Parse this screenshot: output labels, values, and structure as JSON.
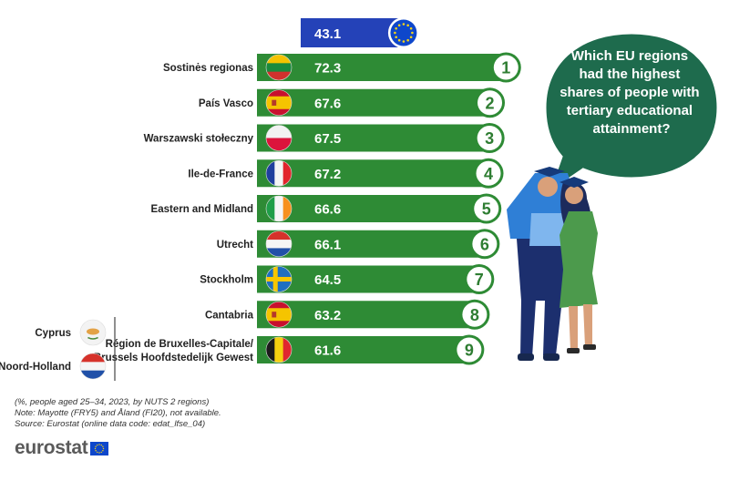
{
  "question": [
    "Which EU regions",
    "had the highest",
    "shares of people with",
    "tertiary educational",
    "attainment?"
  ],
  "eu_value": "43.1",
  "notes": [
    "(%, people aged 25–34, 2023, by NUTS 2 regions)",
    "Note: Mayotte (FRY5) and Åland (FI20), not available.",
    "Source: Eurostat (online data code: edat_lfse_04)"
  ],
  "logo": "eurostat",
  "colors": {
    "bar": "#2e8b35",
    "eu_bar": "#2442b8",
    "bubble": "#1e6b4d"
  },
  "side_regions": [
    "Cyprus",
    "Noord-Holland"
  ],
  "chart_data": {
    "type": "bar",
    "orientation": "horizontal",
    "reference": {
      "name": "EU",
      "value": 43.1
    },
    "categories": [
      "Sostinės regionas",
      "País Vasco",
      "Warszawski stołeczny",
      "Ile-de-France",
      "Eastern and Midland",
      "Utrecht",
      "Stockholm",
      "Cantabria",
      "Région de Bruxelles-Capitale/\nBrussels Hoofdstedelijk Gewest"
    ],
    "values": [
      72.3,
      67.6,
      67.5,
      67.2,
      66.6,
      66.1,
      64.5,
      63.2,
      61.6
    ],
    "ranks": [
      "1",
      "2",
      "3",
      "4",
      "5",
      "6",
      "7",
      "8",
      "9"
    ],
    "flags": [
      "lithuania",
      "spain",
      "poland",
      "france",
      "ireland",
      "netherlands",
      "sweden",
      "spain",
      "belgium"
    ]
  }
}
